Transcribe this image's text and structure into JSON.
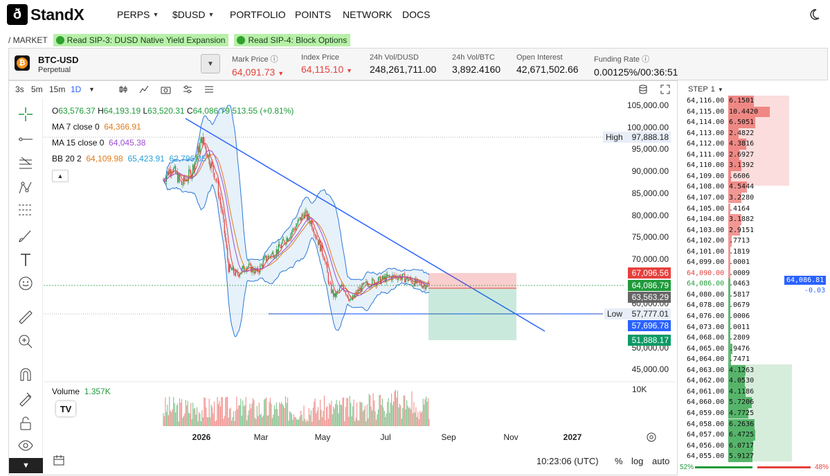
{
  "brand": {
    "name": "StandX",
    "mark": "ð"
  },
  "nav": {
    "items": [
      {
        "label": "PERPS",
        "dropdown": true
      },
      {
        "label": "$DUSD",
        "dropdown": true
      },
      {
        "label": "PORTFOLIO"
      },
      {
        "label": "POINTS"
      },
      {
        "label": "NETWORK"
      },
      {
        "label": "DOCS"
      }
    ]
  },
  "breadcrumb": "/ MARKET",
  "notices": [
    "Read SIP-3: DUSD Native Yield Expansion",
    "Read SIP-4: Block Options"
  ],
  "market": {
    "symbol": "BTC-USD",
    "type": "Perpetual",
    "coin_glyph": "₿",
    "stats": [
      {
        "label": "Mark Price",
        "value": "64,091.73",
        "down": true,
        "info": true
      },
      {
        "label": "Index Price",
        "value": "64,115.10",
        "down": true
      },
      {
        "label": "24h Vol/DUSD",
        "value": "248,261,711.00"
      },
      {
        "label": "24h Vol/BTC",
        "value": "3,892.4160"
      },
      {
        "label": "Open Interest",
        "value": "42,671,502.66"
      },
      {
        "label": "Funding Rate",
        "value": "0.00125%/00:36:51",
        "info": true
      }
    ]
  },
  "toolbar": {
    "intervals": [
      "3s",
      "5m",
      "15m",
      "1D"
    ],
    "active": "1D"
  },
  "legend": {
    "ohlc": {
      "o": "63,576.37",
      "h": "64,193.19",
      "l": "63,520.31",
      "c": "64,086.79",
      "chg": "513.55 (+0.81%)"
    },
    "ma7": {
      "label": "MA 7 close 0",
      "value": "64,366.91"
    },
    "ma15": {
      "label": "MA 15 close 0",
      "value": "64,045.38"
    },
    "bb": {
      "label": "BB 20 2",
      "v1": "64,109.98",
      "v2": "65,423.91",
      "v3": "62,796.05"
    }
  },
  "volume": {
    "label": "Volume",
    "value": "1.357K"
  },
  "axis": {
    "price_ticks": [
      "105,000.00",
      "100,000.00",
      "95,000.00",
      "90,000.00",
      "85,000.00",
      "80,000.00",
      "75,000.00",
      "70,000.00",
      "60,000.00",
      "50,000.00",
      "45,000.00"
    ],
    "vol_tick": "10K",
    "time_ticks": [
      "2026",
      "Mar",
      "May",
      "Jul",
      "Sep",
      "Nov",
      "2027"
    ],
    "high": {
      "label": "High",
      "value": "97,888.18"
    },
    "low": {
      "label": "Low",
      "value": "57,777.01"
    },
    "tags": [
      {
        "value": "67,096.56",
        "color": "#e5413d"
      },
      {
        "value": "64,086.79",
        "color": "#1f9b3a"
      },
      {
        "value": "63,563.29",
        "color": "#666666"
      },
      {
        "value": "57,696.78",
        "color": "#2962ff"
      },
      {
        "value": "51,888.17",
        "color": "#0c9a66"
      }
    ]
  },
  "bottom": {
    "time": "10:23:06 (UTC)",
    "pct": "%",
    "log": "log",
    "auto": "auto"
  },
  "orderbook": {
    "step_label": "STEP",
    "step_value": "1",
    "asks": [
      {
        "price": "64,116.00",
        "qty": "6.1501"
      },
      {
        "price": "64,115.00",
        "qty": "10.4420"
      },
      {
        "price": "64,114.00",
        "qty": "6.5051"
      },
      {
        "price": "64,113.00",
        "qty": "2.4822"
      },
      {
        "price": "64,112.00",
        "qty": "4.3816"
      },
      {
        "price": "64,111.00",
        "qty": "2.6927"
      },
      {
        "price": "64,110.00",
        "qty": "3.1392"
      },
      {
        "price": "64,109.00",
        "qty": ".6606"
      },
      {
        "price": "64,108.00",
        "qty": "4.5444"
      },
      {
        "price": "64,107.00",
        "qty": "3.2280"
      },
      {
        "price": "64,105.00",
        "qty": ".4164"
      },
      {
        "price": "64,104.00",
        "qty": "3.1882"
      },
      {
        "price": "64,103.00",
        "qty": "2.9151"
      },
      {
        "price": "64,102.00",
        "qty": ".7713"
      },
      {
        "price": "64,101.00",
        "qty": ".1819"
      },
      {
        "price": "64,099.00",
        "qty": ".0001"
      },
      {
        "price": "64,090.00",
        "qty": ".0009"
      }
    ],
    "bids": [
      {
        "price": "64,086.00",
        "qty": ".0463"
      },
      {
        "price": "64,080.00",
        "qty": ".5817"
      },
      {
        "price": "64,078.00",
        "qty": ".0679"
      },
      {
        "price": "64,076.00",
        "qty": ".0006"
      },
      {
        "price": "64,073.00",
        "qty": ".0011"
      },
      {
        "price": "64,068.00",
        "qty": ".2809"
      },
      {
        "price": "64,065.00",
        "qty": ".9476"
      },
      {
        "price": "64,064.00",
        "qty": ".7471"
      },
      {
        "price": "64,063.00",
        "qty": "4.1263"
      },
      {
        "price": "64,062.00",
        "qty": "4.0530"
      },
      {
        "price": "64,061.00",
        "qty": "4.1186"
      },
      {
        "price": "64,060.00",
        "qty": "5.7206"
      },
      {
        "price": "64,059.00",
        "qty": "4.7725"
      },
      {
        "price": "64,058.00",
        "qty": "6.2636"
      },
      {
        "price": "64,057.00",
        "qty": "6.4725"
      },
      {
        "price": "64,056.00",
        "qty": "6.0717"
      },
      {
        "price": "64,055.00",
        "qty": "5.9127"
      }
    ],
    "mid": {
      "price": "64,086.81",
      "change": "-0.03"
    },
    "ratio": {
      "buy": "52%",
      "sell": "48%",
      "buy_frac": 0.52
    }
  },
  "colors": {
    "up": "#1f9b3a",
    "down": "#e5413d",
    "accent": "#2962ff"
  }
}
